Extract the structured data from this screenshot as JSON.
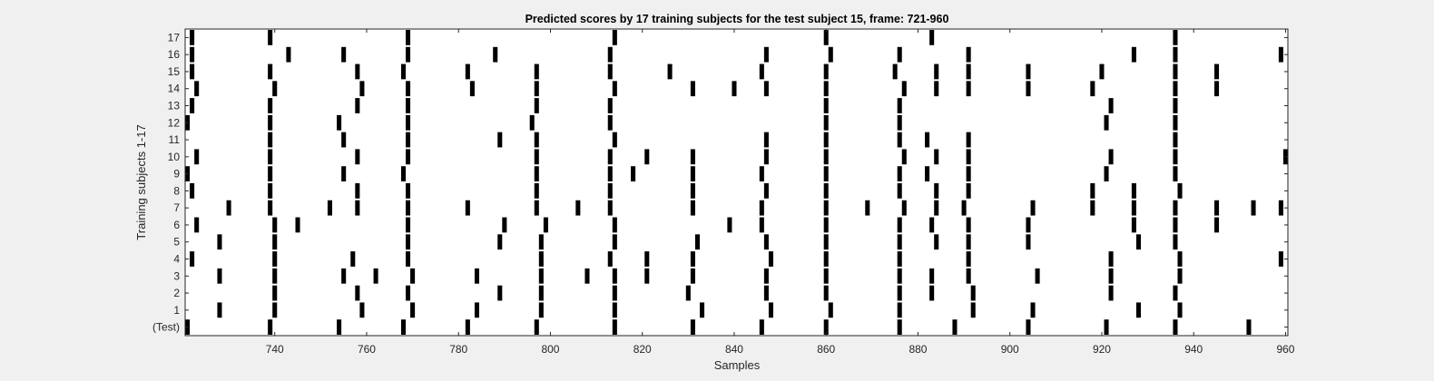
{
  "colors": {
    "background": "#f0f0f0",
    "axes_face": "#ffffff",
    "axes_edge": "#262626",
    "marks": "#000000"
  },
  "chart_data": {
    "type": "raster",
    "title": "Predicted scores by 17 training subjects for the test subject 15, frame: 721-960",
    "xlabel": "Samples",
    "ylabel": "Training subjects 1-17",
    "xlim": [
      721,
      960
    ],
    "xticks": [
      740,
      760,
      780,
      800,
      820,
      840,
      860,
      880,
      900,
      920,
      940,
      960
    ],
    "ytick_labels": [
      "(Test)",
      "1",
      "2",
      "3",
      "4",
      "5",
      "6",
      "7",
      "8",
      "9",
      "10",
      "11",
      "12",
      "13",
      "14",
      "15",
      "16",
      "17"
    ],
    "grid": false,
    "rows": [
      {
        "label": "(Test)",
        "x": [
          721,
          739,
          754,
          768,
          782,
          797,
          814,
          831,
          846,
          860,
          876,
          888,
          904,
          921,
          936,
          952
        ]
      },
      {
        "label": "1",
        "x": [
          728,
          740,
          759,
          770,
          784,
          798,
          814,
          833,
          848,
          861,
          876,
          892,
          905,
          928,
          937
        ]
      },
      {
        "label": "2",
        "x": [
          740,
          758,
          769,
          789,
          798,
          814,
          830,
          847,
          860,
          876,
          883,
          892,
          922,
          936
        ]
      },
      {
        "label": "3",
        "x": [
          728,
          740,
          755,
          762,
          770,
          784,
          798,
          808,
          814,
          821,
          831,
          847,
          860,
          876,
          883,
          891,
          906,
          922,
          937
        ]
      },
      {
        "label": "4",
        "x": [
          722,
          740,
          757,
          769,
          798,
          813,
          821,
          831,
          848,
          860,
          876,
          891,
          922,
          937,
          959
        ]
      },
      {
        "label": "5",
        "x": [
          728,
          740,
          769,
          789,
          798,
          814,
          832,
          847,
          860,
          876,
          884,
          891,
          904,
          928,
          936
        ]
      },
      {
        "label": "6",
        "x": [
          723,
          740,
          745,
          769,
          790,
          799,
          814,
          839,
          846,
          860,
          876,
          883,
          891,
          904,
          927,
          936,
          945
        ]
      },
      {
        "label": "7",
        "x": [
          730,
          739,
          752,
          758,
          769,
          782,
          797,
          806,
          813,
          831,
          846,
          860,
          869,
          877,
          884,
          890,
          905,
          918,
          927,
          936,
          945,
          953,
          959
        ]
      },
      {
        "label": "8",
        "x": [
          722,
          739,
          758,
          769,
          797,
          813,
          831,
          847,
          860,
          876,
          884,
          891,
          918,
          927,
          937
        ]
      },
      {
        "label": "9",
        "x": [
          721,
          739,
          755,
          768,
          797,
          813,
          818,
          831,
          846,
          860,
          876,
          882,
          891,
          921,
          936
        ]
      },
      {
        "label": "10",
        "x": [
          723,
          739,
          758,
          769,
          797,
          813,
          821,
          831,
          847,
          860,
          877,
          884,
          891,
          922,
          936,
          960
        ]
      },
      {
        "label": "11",
        "x": [
          739,
          755,
          769,
          789,
          797,
          814,
          847,
          860,
          876,
          882,
          891,
          936
        ]
      },
      {
        "label": "12",
        "x": [
          721,
          739,
          754,
          769,
          796,
          813,
          860,
          876,
          921,
          936
        ]
      },
      {
        "label": "13",
        "x": [
          722,
          739,
          758,
          769,
          797,
          813,
          860,
          876,
          922,
          936
        ]
      },
      {
        "label": "14",
        "x": [
          723,
          740,
          759,
          769,
          783,
          797,
          814,
          831,
          840,
          847,
          860,
          877,
          884,
          891,
          904,
          918,
          936,
          945
        ]
      },
      {
        "label": "15",
        "x": [
          722,
          739,
          758,
          768,
          782,
          797,
          813,
          826,
          846,
          860,
          875,
          884,
          891,
          904,
          920,
          936,
          945
        ]
      },
      {
        "label": "16",
        "x": [
          722,
          743,
          755,
          769,
          788,
          813,
          847,
          861,
          876,
          891,
          927,
          936,
          959
        ]
      },
      {
        "label": "17",
        "x": [
          722,
          739,
          769,
          814,
          860,
          883,
          936
        ]
      }
    ]
  }
}
